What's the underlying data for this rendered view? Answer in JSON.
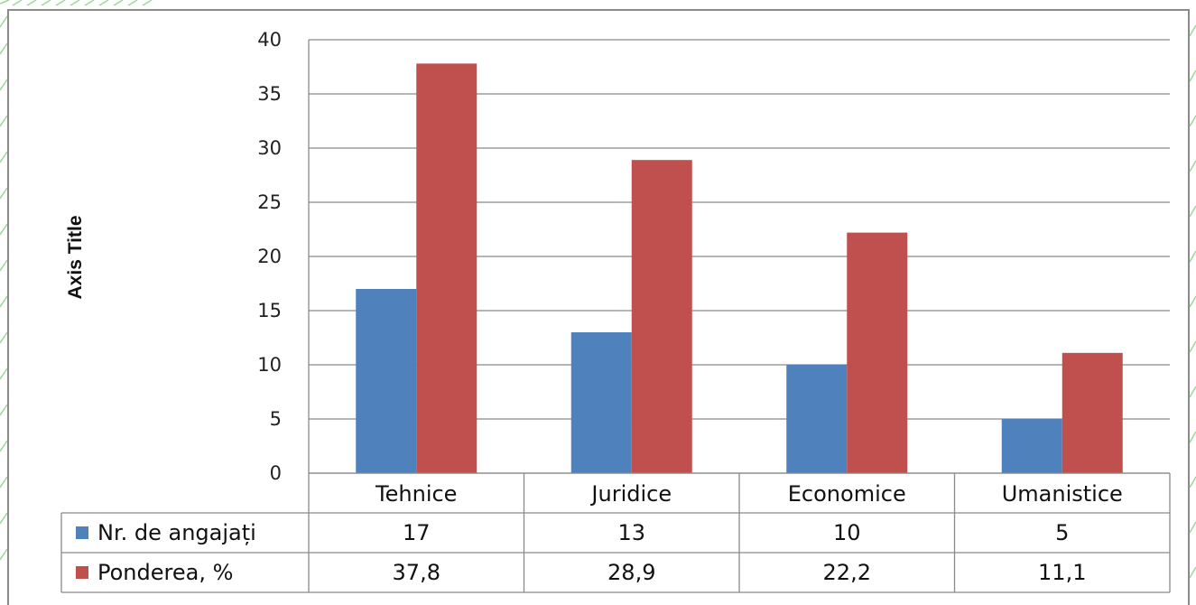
{
  "chart_data": {
    "type": "bar",
    "categories": [
      "Tehnice",
      "Juridice",
      "Economice",
      "Umanistice"
    ],
    "series": [
      {
        "name": "Nr. de angajați",
        "values": [
          17,
          13,
          10,
          5
        ],
        "labels": [
          "17",
          "13",
          "10",
          "5"
        ],
        "color": "#4f81bd"
      },
      {
        "name": "Ponderea, %",
        "values": [
          37.8,
          28.9,
          22.2,
          11.1
        ],
        "labels": [
          "37,8",
          "28,9",
          "22,2",
          "11,1"
        ],
        "color": "#c0504d"
      }
    ],
    "ylabel": "Axis Title",
    "ylim": [
      0,
      40
    ],
    "yticks": [
      0,
      5,
      10,
      15,
      20,
      25,
      30,
      35,
      40
    ],
    "grid": true,
    "legend": "data table"
  },
  "colors": {
    "gridline": "#8a8a8a",
    "decoration": "#9ad89a"
  }
}
